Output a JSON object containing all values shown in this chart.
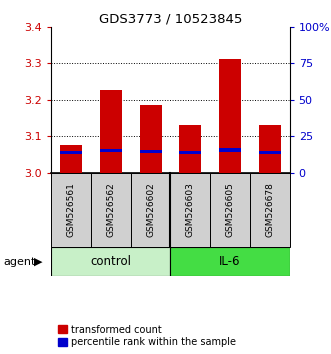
{
  "title": "GDS3773 / 10523845",
  "samples": [
    "GSM526561",
    "GSM526562",
    "GSM526602",
    "GSM526603",
    "GSM526605",
    "GSM526678"
  ],
  "red_values": [
    3.075,
    3.225,
    3.185,
    3.13,
    3.31,
    3.13
  ],
  "blue_values": [
    3.055,
    3.06,
    3.058,
    3.055,
    3.062,
    3.055
  ],
  "y_min": 3.0,
  "y_max": 3.4,
  "y_ticks": [
    3.0,
    3.1,
    3.2,
    3.3,
    3.4
  ],
  "y2_ticks": [
    0,
    25,
    50,
    75,
    100
  ],
  "y2_tick_labels": [
    "0",
    "25",
    "50",
    "75",
    "100%"
  ],
  "groups": [
    {
      "label": "control",
      "indices": [
        0,
        1,
        2
      ],
      "color": "#c8f0c8"
    },
    {
      "label": "IL-6",
      "indices": [
        3,
        4,
        5
      ],
      "color": "#44dd44"
    }
  ],
  "bar_width": 0.55,
  "red_color": "#cc0000",
  "blue_color": "#0000cc",
  "axis_label_color_left": "#cc0000",
  "axis_label_color_right": "#0000cc",
  "agent_label": "agent",
  "legend_red": "transformed count",
  "legend_blue": "percentile rank within the sample",
  "sample_box_color": "#d0d0d0",
  "grid_lines": [
    3.1,
    3.2,
    3.3
  ],
  "blue_bar_height": 0.01
}
